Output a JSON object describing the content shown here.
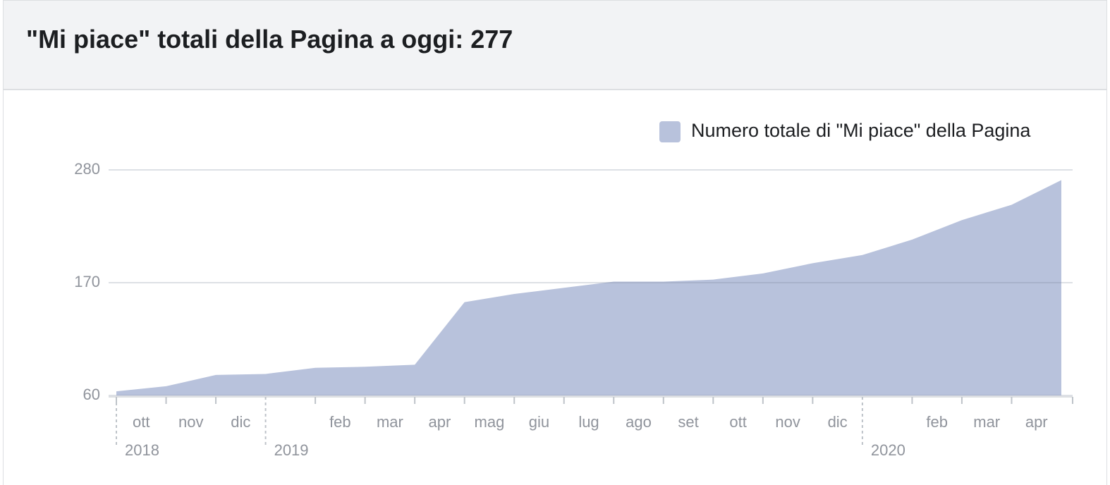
{
  "title": "\"Mi piace\" totali della Pagina a oggi: 277",
  "chart_data": {
    "type": "area",
    "x": [
      "2018-10",
      "2018-11",
      "2018-12",
      "2019-01",
      "2019-02",
      "2019-03",
      "2019-04",
      "2019-05",
      "2019-06",
      "2019-07",
      "2019-08",
      "2019-09",
      "2019-10",
      "2019-11",
      "2019-12",
      "2020-01",
      "2020-02",
      "2020-03",
      "2020-04",
      "2020-05"
    ],
    "series": [
      {
        "name": "Numero totale di \"Mi piace\" della Pagina",
        "color": "#b8c2dc",
        "values": [
          64,
          69,
          80,
          81,
          87,
          88,
          90,
          151,
          159,
          165,
          171,
          171,
          173,
          179,
          189,
          197,
          212,
          231,
          246,
          270
        ]
      }
    ],
    "xlim": [
      "2018-10",
      "2020-05"
    ],
    "xticks": [
      {
        "value": "2018-10",
        "label": "ott"
      },
      {
        "value": "2018-11",
        "label": "nov"
      },
      {
        "value": "2018-12",
        "label": "dic"
      },
      {
        "value": "2019-02",
        "label": "feb"
      },
      {
        "value": "2019-03",
        "label": "mar"
      },
      {
        "value": "2019-04",
        "label": "apr"
      },
      {
        "value": "2019-05",
        "label": "mag"
      },
      {
        "value": "2019-06",
        "label": "giu"
      },
      {
        "value": "2019-07",
        "label": "lug"
      },
      {
        "value": "2019-08",
        "label": "ago"
      },
      {
        "value": "2019-09",
        "label": "set"
      },
      {
        "value": "2019-10",
        "label": "ott"
      },
      {
        "value": "2019-11",
        "label": "nov"
      },
      {
        "value": "2019-12",
        "label": "dic"
      },
      {
        "value": "2020-02",
        "label": "feb"
      },
      {
        "value": "2020-03",
        "label": "mar"
      },
      {
        "value": "2020-04",
        "label": "apr"
      }
    ],
    "year_ticks": [
      {
        "value": "2018-10",
        "label": "2018"
      },
      {
        "value": "2019-01",
        "label": "2019"
      },
      {
        "value": "2020-01",
        "label": "2020"
      }
    ],
    "ylim": [
      60,
      280
    ],
    "yticks": [
      60,
      170,
      280
    ],
    "grid": true
  }
}
